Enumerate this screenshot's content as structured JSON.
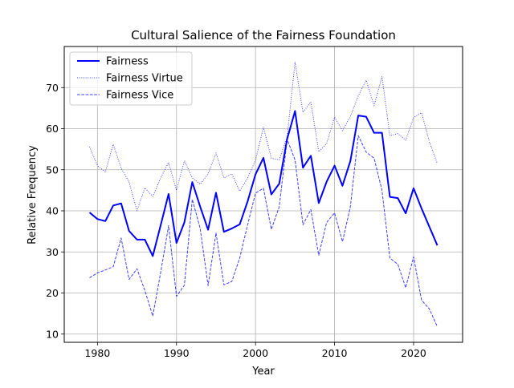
{
  "chart_data": {
    "type": "line",
    "title": "Cultural Salience of the Fairness Foundation",
    "xlabel": "Year",
    "ylabel": "Relative Frequency",
    "xlim": [
      1975.8,
      2026.2
    ],
    "ylim": [
      8.0,
      80.0
    ],
    "x_ticks": [
      1980,
      1990,
      2000,
      2010,
      2020
    ],
    "y_ticks": [
      10,
      20,
      30,
      40,
      50,
      60,
      70
    ],
    "grid": true,
    "legend_position": "top-left",
    "x": [
      1979,
      1980,
      1981,
      1982,
      1983,
      1984,
      1985,
      1986,
      1987,
      1988,
      1989,
      1990,
      1991,
      1992,
      1993,
      1994,
      1995,
      1996,
      1997,
      1998,
      1999,
      2000,
      2001,
      2002,
      2003,
      2004,
      2005,
      2006,
      2007,
      2008,
      2009,
      2010,
      2011,
      2012,
      2013,
      2014,
      2015,
      2016,
      2017,
      2018,
      2019,
      2020,
      2021,
      2022,
      2023
    ],
    "series": [
      {
        "name": "Fairness",
        "color": "#0000ff",
        "style": "solid",
        "values": [
          39.6,
          38.0,
          37.5,
          41.3,
          41.8,
          35.1,
          33.0,
          33.0,
          29.0,
          36.5,
          44.1,
          32.2,
          37.2,
          47.0,
          41.0,
          35.4,
          44.4,
          34.9,
          35.7,
          36.7,
          42.3,
          48.9,
          52.9,
          44.0,
          46.6,
          57.5,
          64.3,
          50.5,
          53.4,
          41.9,
          47.1,
          51.0,
          46.1,
          52.1,
          63.2,
          62.9,
          59.0,
          59.0,
          43.4,
          43.1,
          39.4,
          45.5,
          40.6,
          36.1,
          31.6
        ]
      },
      {
        "name": "Fairness Virtue",
        "color": "#0000ff",
        "style": "dotted",
        "values": [
          55.6,
          51.0,
          49.5,
          56.2,
          50.4,
          47.0,
          40.0,
          45.6,
          43.5,
          48.0,
          51.8,
          45.0,
          52.2,
          48.0,
          46.5,
          49.0,
          54.1,
          48.0,
          49.0,
          44.8,
          48.0,
          52.3,
          60.4,
          52.8,
          52.4,
          58.0,
          76.2,
          64.0,
          66.5,
          54.4,
          56.4,
          62.8,
          59.5,
          63.0,
          68.0,
          71.8,
          65.6,
          72.7,
          58.3,
          58.8,
          57.2,
          62.7,
          63.9,
          56.8,
          51.5
        ]
      },
      {
        "name": "Fairness Vice",
        "color": "#0000ff",
        "style": "dashed",
        "values": [
          23.7,
          24.9,
          25.6,
          26.4,
          33.4,
          23.3,
          25.9,
          20.6,
          14.4,
          25.0,
          36.4,
          19.2,
          21.9,
          42.8,
          35.7,
          21.8,
          34.6,
          22.0,
          22.8,
          28.5,
          36.6,
          44.3,
          45.5,
          35.5,
          41.0,
          57.4,
          52.4,
          36.6,
          40.3,
          29.2,
          37.2,
          39.5,
          32.5,
          41.0,
          58.3,
          54.3,
          52.8,
          45.0,
          28.5,
          27.0,
          21.3,
          28.8,
          18.3,
          16.1,
          11.8
        ]
      }
    ]
  }
}
